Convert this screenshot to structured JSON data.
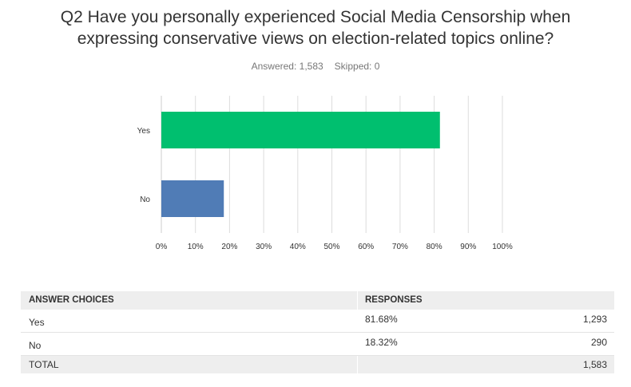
{
  "question": {
    "line1": "Q2 Have you personally experienced Social Media Censorship when",
    "line2": "expressing conservative views on election-related topics online?"
  },
  "meta": {
    "answered": "Answered: 1,583",
    "skipped": "Skipped: 0"
  },
  "chart_data": {
    "type": "bar",
    "orientation": "horizontal",
    "categories": [
      "Yes",
      "No"
    ],
    "values": [
      81.68,
      18.32
    ],
    "value_unit": "percent",
    "xlim": [
      0,
      100
    ],
    "x_ticks": [
      "0%",
      "10%",
      "20%",
      "30%",
      "40%",
      "50%",
      "60%",
      "70%",
      "80%",
      "90%",
      "100%"
    ],
    "grid": true,
    "bar_colors": [
      "#00bf6f",
      "#507cb6"
    ],
    "title": "",
    "xlabel": "",
    "ylabel": ""
  },
  "table": {
    "headers": {
      "choices": "ANSWER CHOICES",
      "responses": "RESPONSES"
    },
    "rows": [
      {
        "choice": "Yes",
        "percent": "81.68%",
        "count": "1,293"
      },
      {
        "choice": "No",
        "percent": "18.32%",
        "count": "290"
      }
    ],
    "total": {
      "label": "TOTAL",
      "count": "1,583"
    }
  },
  "colors": {
    "yes_bar": "#00bf6f",
    "no_bar": "#507cb6",
    "header_bg": "#eeeeee",
    "grid": "#dddddd"
  }
}
